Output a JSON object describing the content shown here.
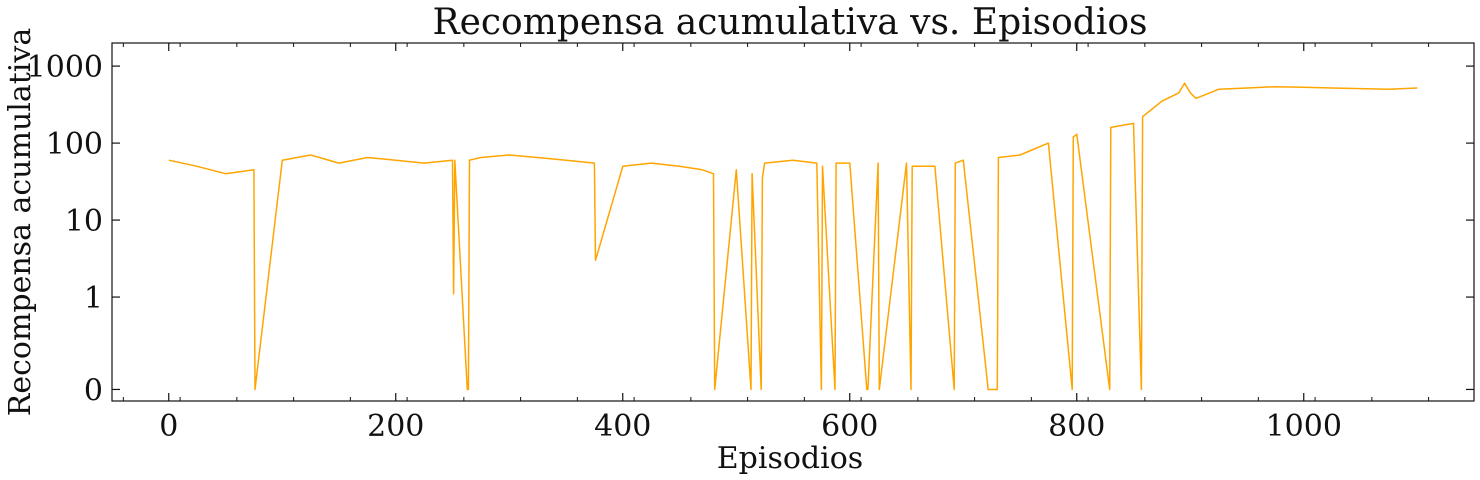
{
  "chart_data": {
    "type": "line",
    "title": "Recompensa acumulativa vs. Episodios",
    "xlabel": "Episodios",
    "ylabel": "Recompensa acumulativa",
    "xlim": [
      -50,
      1150
    ],
    "ylim_log10": [
      -1.35,
      3.3
    ],
    "y_scale": "symlog",
    "x_ticks": [
      0,
      200,
      400,
      600,
      800,
      1000
    ],
    "x_tick_labels": [
      "0",
      "200",
      "400",
      "600",
      "800",
      "1000"
    ],
    "y_ticks": [
      0,
      1,
      10,
      100,
      1000
    ],
    "y_tick_labels": [
      "0",
      "1",
      "10",
      "100",
      "1000"
    ],
    "grid": false,
    "line_color": "#ffa500",
    "series": [
      {
        "x": [
          0,
          25,
          50,
          75,
          76,
          100,
          125,
          150,
          175,
          200,
          225,
          250,
          251,
          252,
          263,
          264,
          265,
          275,
          300,
          325,
          350,
          375,
          376,
          400,
          425,
          450,
          470,
          480,
          481,
          500,
          513,
          514,
          522,
          523,
          525,
          550,
          571,
          575,
          576,
          587,
          588,
          600,
          615,
          616,
          625,
          626,
          650,
          654,
          655,
          675,
          692,
          693,
          700,
          722,
          723,
          730,
          731,
          750,
          775,
          796,
          797,
          800,
          829,
          830,
          850,
          857,
          858,
          875,
          890,
          895,
          900,
          905,
          925,
          950,
          975,
          1000,
          1025,
          1050,
          1075,
          1100
        ],
        "y": [
          60,
          50,
          40,
          45,
          0,
          60,
          70,
          55,
          65,
          60,
          55,
          60,
          1.1,
          60,
          0,
          0,
          60,
          65,
          70,
          65,
          60,
          55,
          3,
          50,
          55,
          50,
          45,
          40,
          0,
          45,
          0,
          40,
          0,
          35,
          55,
          60,
          55,
          0,
          50,
          0,
          55,
          55,
          0,
          0,
          55,
          0,
          55,
          0,
          50,
          50,
          0,
          55,
          60,
          0,
          0,
          0,
          65,
          70,
          100,
          0,
          120,
          130,
          0,
          160,
          180,
          0,
          220,
          350,
          450,
          600,
          450,
          380,
          500,
          520,
          540,
          530,
          520,
          510,
          500,
          520
        ]
      }
    ]
  }
}
